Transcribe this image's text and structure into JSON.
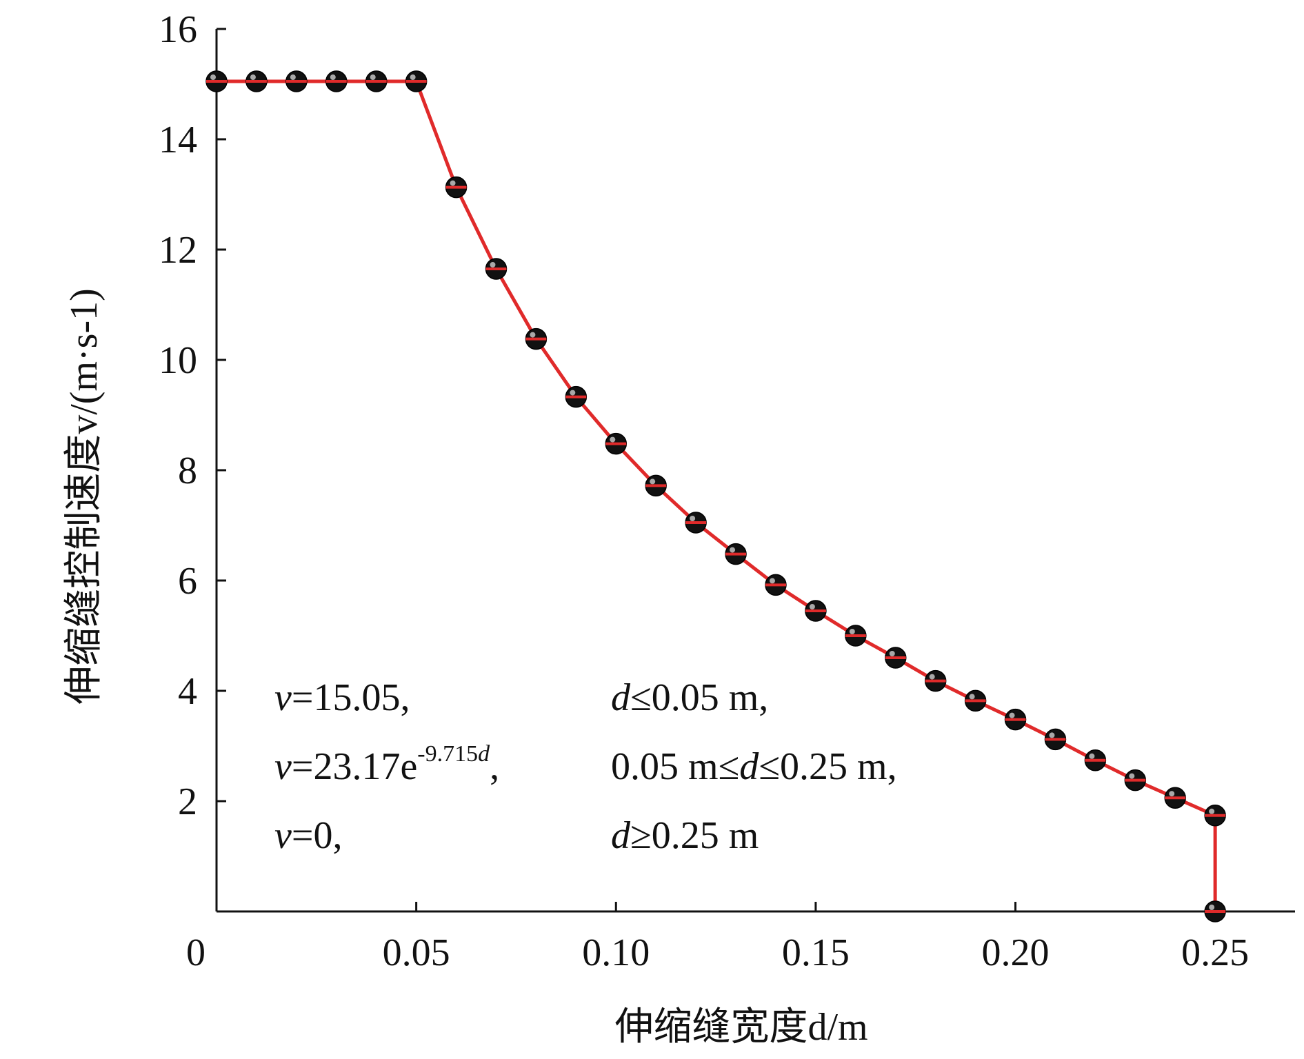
{
  "chart_data": {
    "type": "line",
    "title": "",
    "xlabel": "伸缩缝宽度d/m",
    "ylabel": "伸缩缝控制速度v/(m·s-1)",
    "xlim": [
      0,
      0.27
    ],
    "ylim": [
      0,
      16
    ],
    "x_ticks": [
      0,
      0.05,
      0.1,
      0.15,
      0.2,
      0.25
    ],
    "x_tick_labels": [
      "0",
      "0.05",
      "0.10",
      "0.15",
      "0.20",
      "0.25"
    ],
    "y_ticks": [
      2,
      4,
      6,
      8,
      10,
      12,
      14,
      16
    ],
    "y_tick_labels": [
      "2",
      "4",
      "6",
      "8",
      "10",
      "12",
      "14",
      "16"
    ],
    "grid": false,
    "colors": {
      "line": "#e02a2a",
      "marker": "#111111",
      "axis": "#111111"
    },
    "series": [
      {
        "x": [
          0,
          0.01,
          0.02,
          0.03,
          0.04,
          0.05,
          0.06,
          0.07,
          0.08,
          0.09,
          0.1,
          0.11,
          0.12,
          0.13,
          0.14,
          0.15,
          0.16,
          0.17,
          0.18,
          0.19,
          0.2,
          0.21,
          0.22,
          0.23,
          0.24,
          0.25,
          0.25
        ],
        "y": [
          15.05,
          15.05,
          15.05,
          15.05,
          15.05,
          15.05,
          13.13,
          11.65,
          10.38,
          9.33,
          8.48,
          7.72,
          7.05,
          6.48,
          5.92,
          5.45,
          5.0,
          4.6,
          4.18,
          3.82,
          3.48,
          3.12,
          2.74,
          2.38,
          2.06,
          1.74,
          0
        ]
      }
    ],
    "annotations": [
      {
        "v": "v",
        "eq": "=15.05,",
        "cond_pre": "",
        "cond_var": "d",
        "cond_post": "≤0.05 m,"
      },
      {
        "v": "v",
        "eq": "=23.17e",
        "sup": "-9.715",
        "sup_var": "d",
        "eq_tail": ",",
        "cond_pre": "0.05 m≤",
        "cond_var": "d",
        "cond_post": "≤0.25 m,"
      },
      {
        "v": "v",
        "eq": "=0,",
        "cond_pre": "",
        "cond_var": "d",
        "cond_post": "≥0.25 m"
      }
    ]
  }
}
